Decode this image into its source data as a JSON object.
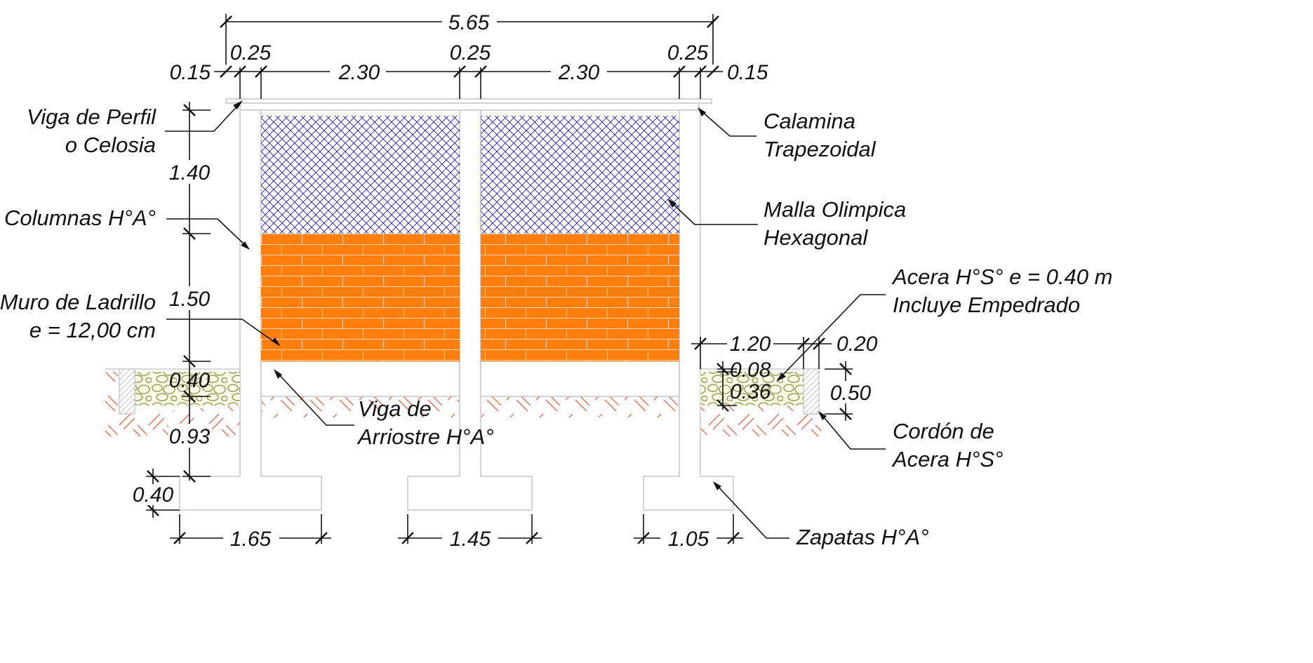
{
  "dimensions": {
    "overall_width": "5.65",
    "edge_left": "0.15",
    "column_left": "0.25",
    "span_left": "2.30",
    "column_mid": "0.25",
    "span_right": "2.30",
    "column_right": "0.25",
    "edge_right": "0.15",
    "height_upper": "1.40",
    "height_wall": "1.50",
    "height_tie_beam": "0.40",
    "depth_to_footing": "0.93",
    "footing_thickness": "0.40",
    "footing_left_width": "1.65",
    "footing_mid_width": "1.45",
    "footing_right_width": "1.05",
    "sidewalk_width": "1.20",
    "curb_width": "0.20",
    "sidewalk_top_layer": "0.08",
    "sidewalk_fill_layer": "0.36",
    "curb_height": "0.50"
  },
  "labels": {
    "beam": [
      "Viga de Perfil",
      "o Celosia"
    ],
    "roof_sheet": [
      "Calamina",
      "Trapezoidal"
    ],
    "columns": [
      "Columnas H°A°"
    ],
    "mesh": [
      "Malla Olimpica",
      "Hexagonal"
    ],
    "brick_wall": [
      "Muro de Ladrillo",
      "e = 12,00 cm"
    ],
    "sidewalk": [
      "Acera H°S° e = 0.40 m",
      "Incluye Empedrado"
    ],
    "tie_beam": [
      "Viga de",
      "Arriostre H°A°"
    ],
    "curb": [
      "Cordón de",
      "Acera H°S°"
    ],
    "footings": [
      "Zapatas H°A°"
    ]
  },
  "colors": {
    "brick": "#ff7f0e",
    "brick_joint": "#ffd2a6",
    "mesh": "#1a1ad6",
    "soil_hatch": "#e06a4a",
    "gravel": "#9ea55a",
    "structure_outline": "#c9c9c9"
  }
}
